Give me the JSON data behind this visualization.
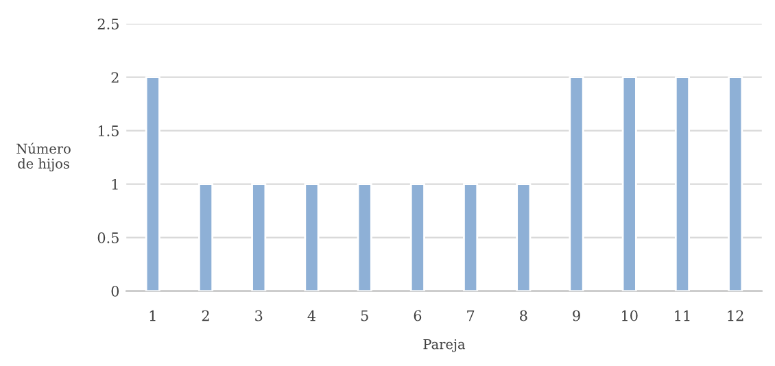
{
  "chart_data": {
    "type": "bar",
    "xlabel": "Pareja",
    "ylabel": "Número\nde hijos",
    "categories": [
      "1",
      "2",
      "3",
      "4",
      "5",
      "6",
      "7",
      "8",
      "9",
      "10",
      "11",
      "12"
    ],
    "values": [
      2,
      1,
      1,
      1,
      1,
      1,
      1,
      1,
      2,
      2,
      2,
      2
    ],
    "color": "#8eb0d6",
    "ylim": [
      0,
      2.5
    ],
    "yticks": [
      0,
      0.5,
      1,
      1.5,
      2,
      2.5
    ],
    "grid": "y",
    "legend": false
  }
}
